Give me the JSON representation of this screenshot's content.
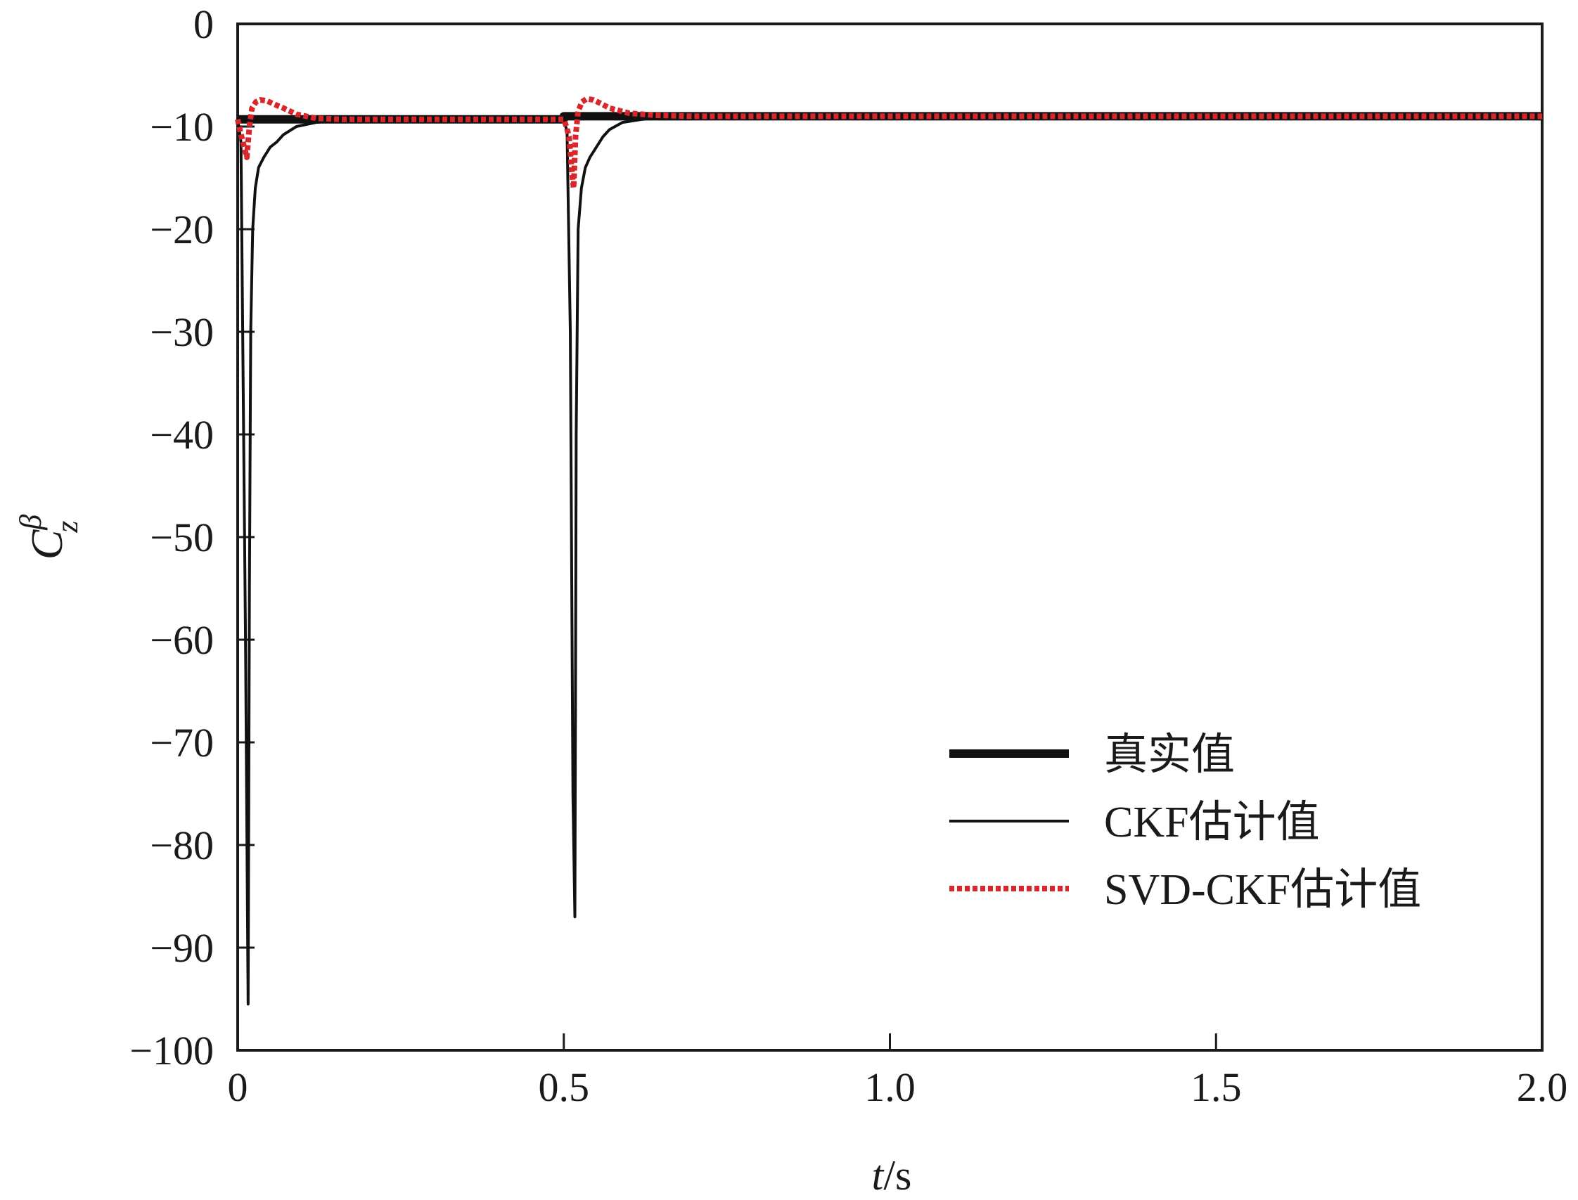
{
  "chart_data": {
    "type": "line",
    "title": "",
    "xlabel": {
      "var": "t",
      "unit": "/s"
    },
    "ylabel": {
      "var": "C",
      "sub": "z",
      "sup": "β"
    },
    "xlim": [
      0,
      2.0
    ],
    "ylim": [
      -100,
      0
    ],
    "xticks": [
      0,
      0.5,
      1.0,
      1.5,
      2.0
    ],
    "xtick_labels": [
      "0",
      "0.5",
      "1.0",
      "1.5",
      "2.0"
    ],
    "yticks": [
      0,
      -10,
      -20,
      -30,
      -40,
      -50,
      -60,
      -70,
      -80,
      -90,
      -100
    ],
    "ytick_labels": [
      "0",
      "−10",
      "−20",
      "−30",
      "−40",
      "−50",
      "−60",
      "−70",
      "−80",
      "−90",
      "−100"
    ],
    "grid": false,
    "legend_position": "bottom-right",
    "series": [
      {
        "name": "真实值",
        "color": "#111111",
        "style": "solid-thick",
        "x": [
          0,
          0.5,
          0.5,
          2.0
        ],
        "y": [
          -9.3,
          -9.3,
          -9.0,
          -9.0
        ]
      },
      {
        "name": "CKF估计值",
        "color": "#111111",
        "style": "solid-thin",
        "x": [
          0,
          0.005,
          0.012,
          0.016,
          0.018,
          0.02,
          0.023,
          0.027,
          0.032,
          0.04,
          0.05,
          0.06,
          0.07,
          0.09,
          0.12,
          0.16,
          0.22,
          0.3,
          0.4,
          0.5,
          0.505,
          0.51,
          0.514,
          0.517,
          0.519,
          0.522,
          0.527,
          0.533,
          0.54,
          0.55,
          0.56,
          0.57,
          0.59,
          0.62,
          0.66,
          0.72,
          0.8,
          1.0,
          1.5,
          2.0
        ],
        "y": [
          -9.3,
          -11.5,
          -60,
          -95.5,
          -55,
          -30,
          -20,
          -16,
          -14,
          -13,
          -12,
          -11.5,
          -10.8,
          -10,
          -9.6,
          -9.4,
          -9.3,
          -9.3,
          -9.3,
          -9.3,
          -10.5,
          -30,
          -75,
          -87,
          -40,
          -20,
          -16,
          -14,
          -13,
          -12,
          -11,
          -10.3,
          -9.6,
          -9.3,
          -9.1,
          -9.0,
          -9.0,
          -9.0,
          -9.0,
          -9.0
        ]
      },
      {
        "name": "SVD-CKF估计值",
        "color": "#d9262b",
        "style": "dotted-thick",
        "x": [
          0,
          0.004,
          0.01,
          0.014,
          0.018,
          0.022,
          0.028,
          0.035,
          0.045,
          0.055,
          0.07,
          0.09,
          0.12,
          0.16,
          0.22,
          0.3,
          0.4,
          0.5,
          0.504,
          0.508,
          0.512,
          0.515,
          0.518,
          0.522,
          0.528,
          0.535,
          0.545,
          0.555,
          0.57,
          0.6,
          0.64,
          0.7,
          0.8,
          1.0,
          1.5,
          2.0
        ],
        "y": [
          -9.3,
          -10.5,
          -12,
          -13,
          -10,
          -8.2,
          -7.6,
          -7.4,
          -7.5,
          -7.8,
          -8.2,
          -8.8,
          -9.2,
          -9.3,
          -9.3,
          -9.3,
          -9.3,
          -9.3,
          -10,
          -11,
          -14,
          -16,
          -11,
          -8.5,
          -7.6,
          -7.3,
          -7.4,
          -7.7,
          -8.2,
          -8.7,
          -8.9,
          -9.0,
          -9.0,
          -9.0,
          -9.0,
          -9.0
        ]
      }
    ]
  }
}
